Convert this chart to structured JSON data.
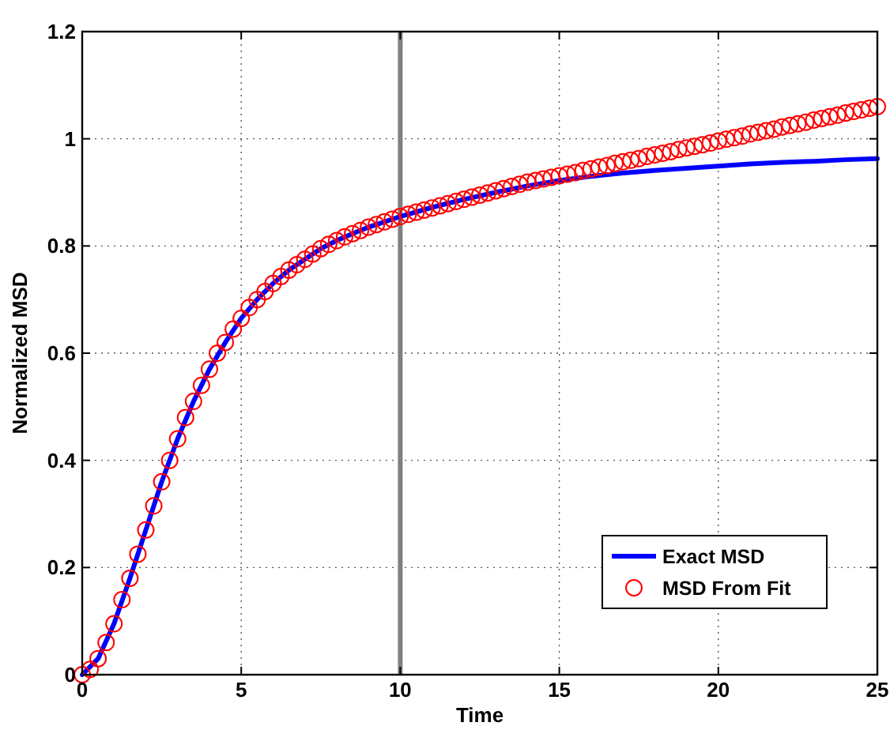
{
  "chart_data": {
    "type": "line",
    "xlabel": "Time",
    "ylabel": "Normalized MSD",
    "xlim": [
      0,
      25
    ],
    "xticks": [
      0,
      5,
      10,
      15,
      20,
      25
    ],
    "ylim": [
      0,
      1.2
    ],
    "yticks": [
      0,
      0.2,
      0.4,
      0.6,
      0.8,
      1,
      1.2
    ],
    "grid": true,
    "legend": "bottom right",
    "ref_lines": [
      {
        "axis": "x",
        "value": 10,
        "color": "#808080"
      }
    ],
    "series": [
      {
        "name": "Exact MSD",
        "color": "#0000ff",
        "marker": "none",
        "line_style": "solid",
        "x": [
          0,
          0.5,
          1,
          1.5,
          2,
          2.5,
          3,
          3.5,
          4,
          4.5,
          5,
          5.5,
          6,
          6.5,
          7,
          7.5,
          8,
          8.5,
          9,
          9.5,
          10,
          11,
          12,
          13,
          14,
          15,
          16,
          17,
          18,
          19,
          20,
          21,
          22,
          23,
          24,
          25
        ],
        "values": [
          0,
          0.03,
          0.095,
          0.18,
          0.27,
          0.36,
          0.44,
          0.51,
          0.57,
          0.62,
          0.665,
          0.7,
          0.73,
          0.755,
          0.775,
          0.795,
          0.81,
          0.823,
          0.835,
          0.845,
          0.855,
          0.872,
          0.887,
          0.9,
          0.912,
          0.922,
          0.93,
          0.936,
          0.941,
          0.945,
          0.949,
          0.953,
          0.956,
          0.958,
          0.961,
          0.963
        ]
      },
      {
        "name": "MSD From Fit",
        "type": "scatter",
        "color": "#ff0000",
        "marker": "circle",
        "x": [
          0,
          0.25,
          0.5,
          0.75,
          1,
          1.25,
          1.5,
          1.75,
          2,
          2.25,
          2.5,
          2.75,
          3,
          3.25,
          3.5,
          3.75,
          4,
          4.25,
          4.5,
          4.75,
          5,
          5.25,
          5.5,
          5.75,
          6,
          6.25,
          6.5,
          6.75,
          7,
          7.25,
          7.5,
          7.75,
          8,
          8.25,
          8.5,
          8.75,
          9,
          9.25,
          9.5,
          9.75,
          10,
          10.25,
          10.5,
          10.75,
          11,
          11.25,
          11.5,
          11.75,
          12,
          12.25,
          12.5,
          12.75,
          13,
          13.25,
          13.5,
          13.75,
          14,
          14.25,
          14.5,
          14.75,
          15,
          15.25,
          15.5,
          15.75,
          16,
          16.25,
          16.5,
          16.75,
          17,
          17.25,
          17.5,
          17.75,
          18,
          18.25,
          18.5,
          18.75,
          19,
          19.25,
          19.5,
          19.75,
          20,
          20.25,
          20.5,
          20.75,
          21,
          21.25,
          21.5,
          21.75,
          22,
          22.25,
          22.5,
          22.75,
          23,
          23.25,
          23.5,
          23.75,
          24,
          24.25,
          24.5,
          24.75,
          25
        ],
        "values": [
          0,
          0.01,
          0.03,
          0.06,
          0.095,
          0.14,
          0.18,
          0.225,
          0.27,
          0.315,
          0.36,
          0.4,
          0.44,
          0.48,
          0.51,
          0.54,
          0.57,
          0.6,
          0.62,
          0.645,
          0.665,
          0.685,
          0.7,
          0.715,
          0.73,
          0.743,
          0.755,
          0.765,
          0.775,
          0.785,
          0.795,
          0.803,
          0.81,
          0.817,
          0.823,
          0.829,
          0.835,
          0.84,
          0.845,
          0.85,
          0.855,
          0.859,
          0.863,
          0.867,
          0.871,
          0.875,
          0.879,
          0.883,
          0.887,
          0.891,
          0.895,
          0.899,
          0.903,
          0.907,
          0.911,
          0.915,
          0.919,
          0.922,
          0.925,
          0.928,
          0.931,
          0.934,
          0.937,
          0.941,
          0.944,
          0.947,
          0.95,
          0.954,
          0.957,
          0.96,
          0.963,
          0.967,
          0.97,
          0.973,
          0.976,
          0.98,
          0.983,
          0.986,
          0.989,
          0.992,
          0.996,
          0.999,
          1.002,
          1.005,
          1.009,
          1.012,
          1.015,
          1.018,
          1.022,
          1.025,
          1.028,
          1.031,
          1.035,
          1.038,
          1.041,
          1.044,
          1.048,
          1.051,
          1.054,
          1.057,
          1.06
        ]
      }
    ]
  }
}
